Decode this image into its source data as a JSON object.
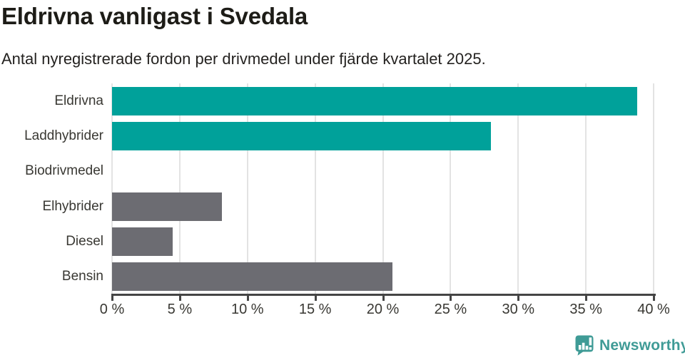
{
  "header": {
    "title": "Eldrivna vanligast i Svedala",
    "subtitle": "Antal nyregistrerade fordon per drivmedel under fjärde kvartalet 2025."
  },
  "chart_data": {
    "type": "bar",
    "orientation": "horizontal",
    "title": "Eldrivna vanligast i Svedala",
    "subtitle": "Antal nyregistrerade fordon per drivmedel under fjärde kvartalet 2025.",
    "categories": [
      "Eldrivna",
      "Laddhybrider",
      "Biodrivmedel",
      "Elhybrider",
      "Diesel",
      "Bensin"
    ],
    "values": [
      38.8,
      28.0,
      0,
      8.1,
      4.5,
      20.7
    ],
    "unit": "%",
    "bar_colors": [
      "#00a19a",
      "#00a19a",
      "#6c6c72",
      "#6c6c72",
      "#6c6c72",
      "#6c6c72"
    ],
    "xlim": [
      0,
      40
    ],
    "x_tick_labels": [
      "0 %",
      "5 %",
      "10 %",
      "15 %",
      "20 %",
      "25 %",
      "30 %",
      "35 %",
      "40 %"
    ],
    "grid": true,
    "legend": false,
    "xlabel": "",
    "ylabel": ""
  },
  "branding": {
    "logo_text": "Newsworthy",
    "logo_icon": "speech-bubble-with-bar-chart-and-exclamation",
    "logo_color": "#3f9b96"
  },
  "colors": {
    "accent_teal": "#00a19a",
    "bar_gray": "#6c6c72",
    "axis": "#454545",
    "gridline": "#e3e3e3",
    "title_text": "#1d1c17",
    "label_text": "#393833",
    "background": "#ffffff"
  }
}
